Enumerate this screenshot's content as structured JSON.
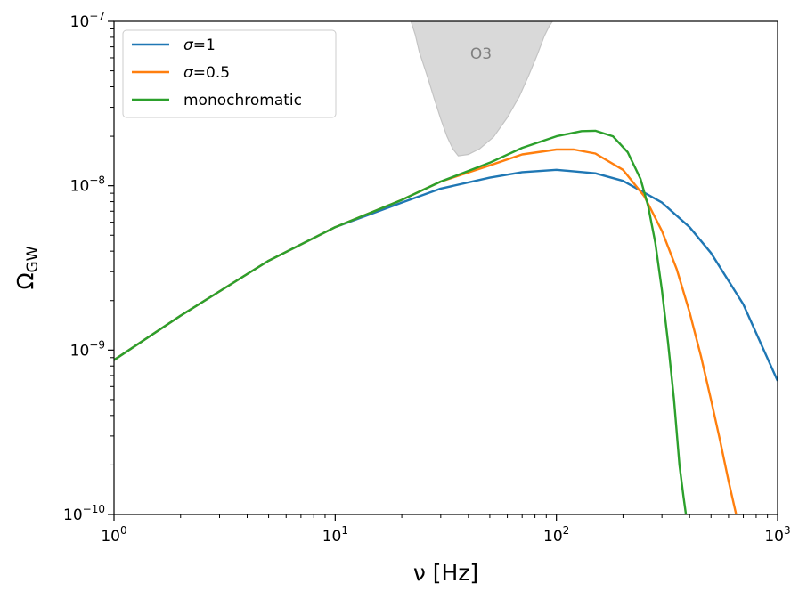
{
  "chart_data": {
    "type": "line",
    "xscale": "log",
    "yscale": "log",
    "xlim": [
      1,
      1000
    ],
    "ylim": [
      1e-10,
      1e-07
    ],
    "xlabel": "ν [Hz]",
    "ylabel": "Ω_GW",
    "x_ticks": [
      {
        "value": 1,
        "base": "10",
        "exp": "0"
      },
      {
        "value": 10,
        "base": "10",
        "exp": "1"
      },
      {
        "value": 100,
        "base": "10",
        "exp": "2"
      },
      {
        "value": 1000,
        "base": "10",
        "exp": "3"
      }
    ],
    "y_ticks": [
      {
        "value": 1e-10,
        "base": "10",
        "exp": "−10"
      },
      {
        "value": 1e-09,
        "base": "10",
        "exp": "−9"
      },
      {
        "value": 1e-08,
        "base": "10",
        "exp": "−8"
      },
      {
        "value": 1e-07,
        "base": "10",
        "exp": "−7"
      }
    ],
    "legend": {
      "placement": "upper-left",
      "entries": [
        {
          "series": 0,
          "symbol": "σ",
          "text": "=1"
        },
        {
          "series": 1,
          "symbol": "σ",
          "text": "=0.5"
        },
        {
          "series": 2,
          "symbol": "",
          "text": "monochromatic"
        }
      ]
    },
    "series": [
      {
        "name": "σ=1",
        "color": "#1f77b4",
        "x": [
          1,
          2,
          5,
          10,
          20,
          30,
          50,
          70,
          100,
          150,
          200,
          300,
          400,
          500,
          700,
          1000
        ],
        "y": [
          8.7e-10,
          1.62e-09,
          3.5e-09,
          5.6e-09,
          7.9e-09,
          9.6e-09,
          1.12e-08,
          1.21e-08,
          1.25e-08,
          1.19e-08,
          1.07e-08,
          7.9e-09,
          5.6e-09,
          3.9e-09,
          1.9e-09,
          6.5e-10
        ]
      },
      {
        "name": "σ=0.5",
        "color": "#ff7f0e",
        "x": [
          1,
          2,
          5,
          10,
          20,
          30,
          50,
          70,
          100,
          120,
          150,
          200,
          250,
          300,
          350,
          400,
          450,
          500,
          550,
          600,
          650
        ],
        "y": [
          8.7e-10,
          1.62e-09,
          3.5e-09,
          5.6e-09,
          8.2e-09,
          1.06e-08,
          1.33e-08,
          1.55e-08,
          1.66e-08,
          1.66e-08,
          1.57e-08,
          1.25e-08,
          8.6e-09,
          5.3e-09,
          3.1e-09,
          1.7e-09,
          9.2e-10,
          5e-10,
          2.8e-10,
          1.6e-10,
          1e-10
        ]
      },
      {
        "name": "monochromatic",
        "color": "#2ca02c",
        "x": [
          1,
          2,
          5,
          10,
          20,
          30,
          50,
          70,
          100,
          130,
          150,
          180,
          210,
          240,
          260,
          280,
          300,
          320,
          340,
          360,
          375,
          385
        ],
        "y": [
          8.7e-10,
          1.62e-09,
          3.5e-09,
          5.6e-09,
          8.2e-09,
          1.06e-08,
          1.38e-08,
          1.7e-08,
          2e-08,
          2.15e-08,
          2.16e-08,
          2e-08,
          1.6e-08,
          1.1e-08,
          7.5e-09,
          4.5e-09,
          2.3e-09,
          1.1e-09,
          5e-10,
          2e-10,
          1.3e-10,
          1e-10
        ]
      }
    ],
    "shaded_region": {
      "label": "O3",
      "fill": "#d9d9d9",
      "edge": "#c4c4c4",
      "left_x": [
        22,
        23,
        24,
        26,
        28,
        30,
        32,
        34,
        36
      ],
      "left_y": [
        1e-07,
        8.3e-08,
        6.5e-08,
        4.7e-08,
        3.4e-08,
        2.55e-08,
        2e-08,
        1.68e-08,
        1.52e-08
      ],
      "right_x": [
        40,
        45,
        52,
        60,
        68,
        75,
        82,
        88,
        93,
        96
      ],
      "right_y": [
        1.55e-08,
        1.68e-08,
        1.98e-08,
        2.6e-08,
        3.5e-08,
        4.7e-08,
        6.3e-08,
        8.1e-08,
        9.4e-08,
        1e-07
      ]
    }
  }
}
